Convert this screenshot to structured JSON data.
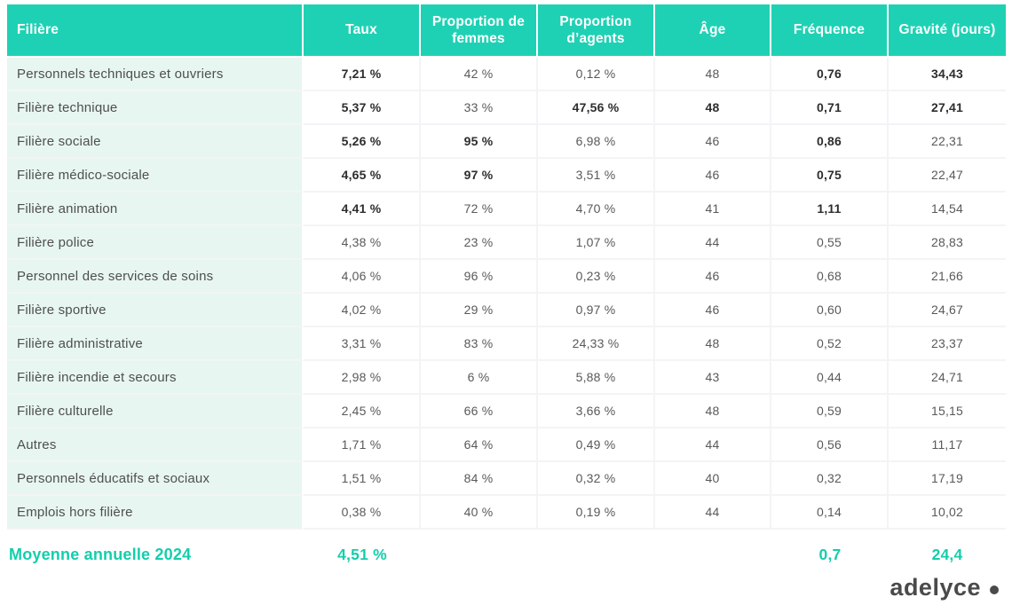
{
  "chart_data": {
    "type": "table",
    "columns": [
      {
        "key": "filiere",
        "label": "Filière"
      },
      {
        "key": "taux",
        "label": "Taux"
      },
      {
        "key": "femmes",
        "label": "Proportion de femmes"
      },
      {
        "key": "agents",
        "label": "Proportion d’agents"
      },
      {
        "key": "age",
        "label": "Âge"
      },
      {
        "key": "frequence",
        "label": "Fréquence"
      },
      {
        "key": "gravite",
        "label": "Gravité (jours)"
      }
    ],
    "rows": [
      {
        "filiere": "Personnels techniques et ouvriers",
        "taux": "7,21 %",
        "femmes": "42 %",
        "agents": "0,12 %",
        "age": "48",
        "frequence": "0,76",
        "gravite": "34,43",
        "bold": [
          "taux",
          "frequence",
          "gravite"
        ]
      },
      {
        "filiere": "Filière technique",
        "taux": "5,37 %",
        "femmes": "33 %",
        "agents": "47,56 %",
        "age": "48",
        "frequence": "0,71",
        "gravite": "27,41",
        "bold": [
          "taux",
          "agents",
          "age",
          "frequence",
          "gravite"
        ]
      },
      {
        "filiere": "Filière sociale",
        "taux": "5,26 %",
        "femmes": "95 %",
        "agents": "6,98 %",
        "age": "46",
        "frequence": "0,86",
        "gravite": "22,31",
        "bold": [
          "taux",
          "femmes",
          "frequence"
        ]
      },
      {
        "filiere": "Filière médico-sociale",
        "taux": "4,65 %",
        "femmes": "97 %",
        "agents": "3,51 %",
        "age": "46",
        "frequence": "0,75",
        "gravite": "22,47",
        "bold": [
          "taux",
          "femmes",
          "frequence"
        ]
      },
      {
        "filiere": "Filière animation",
        "taux": "4,41 %",
        "femmes": "72 %",
        "agents": "4,70 %",
        "age": "41",
        "frequence": "1,11",
        "gravite": "14,54",
        "bold": [
          "taux",
          "frequence"
        ]
      },
      {
        "filiere": "Filière police",
        "taux": "4,38 %",
        "femmes": "23 %",
        "agents": "1,07 %",
        "age": "44",
        "frequence": "0,55",
        "gravite": "28,83",
        "bold": []
      },
      {
        "filiere": "Personnel des services de soins",
        "taux": "4,06 %",
        "femmes": "96 %",
        "agents": "0,23 %",
        "age": "46",
        "frequence": "0,68",
        "gravite": "21,66",
        "bold": []
      },
      {
        "filiere": "Filière sportive",
        "taux": "4,02 %",
        "femmes": "29 %",
        "agents": "0,97 %",
        "age": "46",
        "frequence": "0,60",
        "gravite": "24,67",
        "bold": []
      },
      {
        "filiere": "Filière administrative",
        "taux": "3,31 %",
        "femmes": "83 %",
        "agents": "24,33 %",
        "age": "48",
        "frequence": "0,52",
        "gravite": "23,37",
        "bold": []
      },
      {
        "filiere": "Filière incendie et secours",
        "taux": "2,98 %",
        "femmes": "6 %",
        "agents": "5,88 %",
        "age": "43",
        "frequence": "0,44",
        "gravite": "24,71",
        "bold": []
      },
      {
        "filiere": "Filière culturelle",
        "taux": "2,45 %",
        "femmes": "66 %",
        "agents": "3,66 %",
        "age": "48",
        "frequence": "0,59",
        "gravite": "15,15",
        "bold": []
      },
      {
        "filiere": "Autres",
        "taux": "1,71 %",
        "femmes": "64 %",
        "agents": "0,49 %",
        "age": "44",
        "frequence": "0,56",
        "gravite": "11,17",
        "bold": []
      },
      {
        "filiere": "Personnels éducatifs et sociaux",
        "taux": "1,51 %",
        "femmes": "84 %",
        "agents": "0,32 %",
        "age": "40",
        "frequence": "0,32",
        "gravite": "17,19",
        "bold": []
      },
      {
        "filiere": "Emplois hors filière",
        "taux": "0,38 %",
        "femmes": "40 %",
        "agents": "0,19 %",
        "age": "44",
        "frequence": "0,14",
        "gravite": "10,02",
        "bold": []
      }
    ],
    "footer": {
      "label": "Moyenne annuelle 2024",
      "taux": "4,51 %",
      "frequence": "0,7",
      "gravite": "24,4"
    },
    "layout": {
      "legend": "none",
      "grid": "light"
    }
  },
  "logo": {
    "text": "adelyce",
    "dot_icon": "filled-circle"
  },
  "colors": {
    "accent": "#1fd1b4",
    "accent-strong": "#13ceac",
    "row-tint": "#e7f6f1",
    "grid": "#f3f4f6",
    "text-normal": "#595959",
    "text-bold": "#2d2d2d",
    "label-text": "#4f4f4f",
    "logo": "#4a4a4a"
  }
}
